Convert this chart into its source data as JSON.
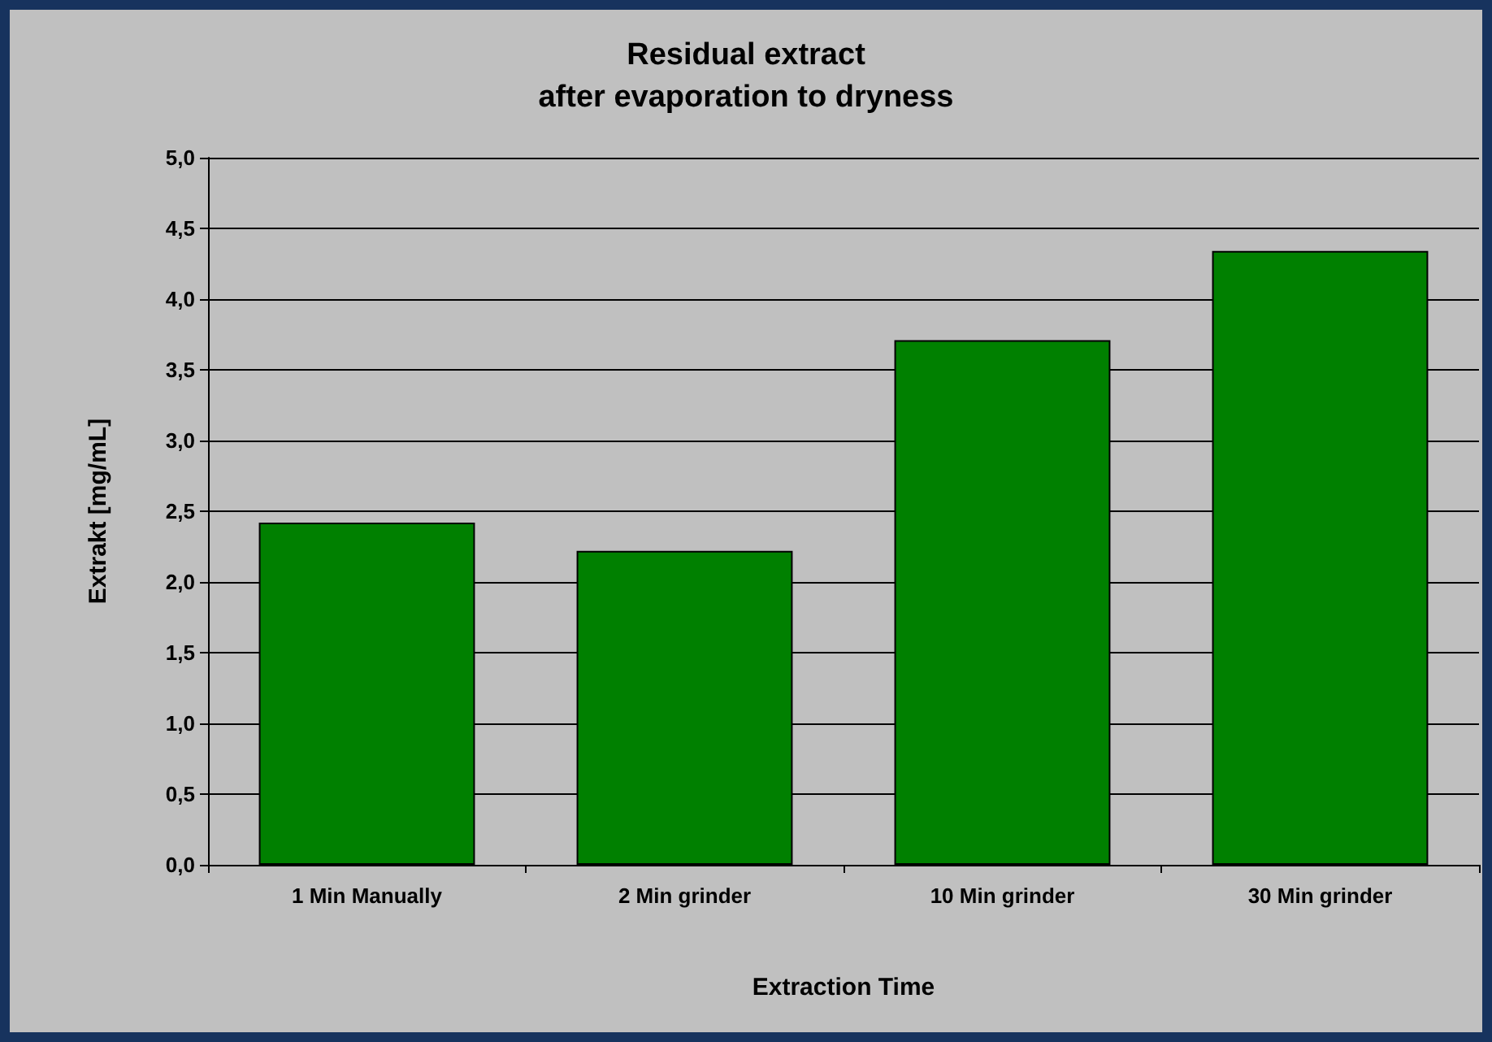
{
  "chart_data": {
    "type": "bar",
    "title": "Residual extract\nafter evaporation to dryness",
    "xlabel": "Extraction Time",
    "ylabel": "Extrakt [mg/mL]",
    "categories": [
      "1 Min Manually",
      "2 Min grinder",
      "10 Min grinder",
      "30 Min grinder"
    ],
    "values": [
      2.42,
      2.22,
      3.71,
      4.34
    ],
    "color": "#008000",
    "ylim": [
      0,
      5
    ],
    "yticks": [
      {
        "value": 0,
        "label": "0,0"
      },
      {
        "value": 0.5,
        "label": "0,5"
      },
      {
        "value": 1,
        "label": "1,0"
      },
      {
        "value": 1.5,
        "label": "1,5"
      },
      {
        "value": 2,
        "label": "2,0"
      },
      {
        "value": 2.5,
        "label": "2,5"
      },
      {
        "value": 3,
        "label": "3,0"
      },
      {
        "value": 3.5,
        "label": "3,5"
      },
      {
        "value": 4,
        "label": "4,0"
      },
      {
        "value": 4.5,
        "label": "4,5"
      },
      {
        "value": 5,
        "label": "5,0"
      }
    ],
    "grid": "y"
  }
}
